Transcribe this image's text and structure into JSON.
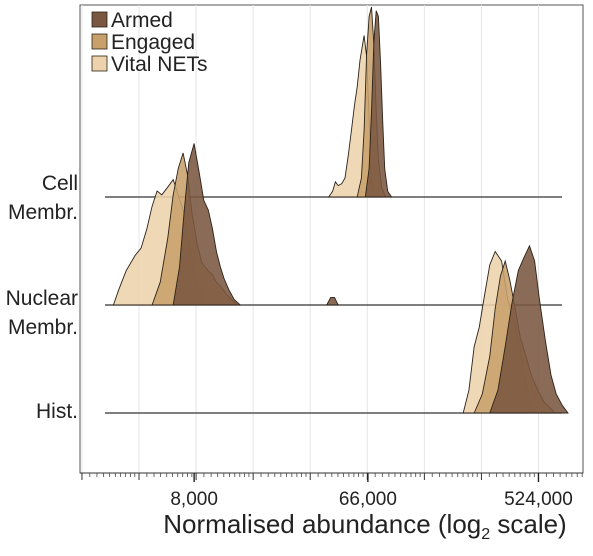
{
  "chart_data": {
    "type": "area",
    "subtype": "ridgeline-density",
    "xlabel": "Normalised abundance (log",
    "xlabel_sub": "2",
    "xlabel_suffix": " scale)",
    "x_scale": "log2",
    "xlim": [
      2000,
      900000
    ],
    "x_ticks": [
      8000,
      66000,
      524000
    ],
    "x_tick_labels": [
      "8,000",
      "66,000",
      "524,000"
    ],
    "grid": true,
    "legend": {
      "placement": "top-left"
    },
    "categories": [
      "Cell Membr.",
      "Nuclear Membr.",
      "Hist."
    ],
    "row_labels": [
      [
        "Cell",
        "Membr."
      ],
      [
        "Nuclear",
        "Membr."
      ],
      [
        "Hist."
      ]
    ],
    "series": [
      {
        "name": "Vital NETs",
        "color": "#ecd3ac",
        "density": [
          {
            "x": [
              41000,
              43000,
              44500,
              46000,
              48000,
              50000,
              52000,
              54000,
              56000,
              58000,
              60000,
              63000,
              65000,
              67000,
              69000,
              72000
            ],
            "y": [
              0.0,
              0.03,
              0.08,
              0.06,
              0.07,
              0.1,
              0.22,
              0.35,
              0.48,
              0.58,
              0.72,
              0.85,
              0.74,
              0.42,
              0.1,
              0.0
            ]
          },
          {
            "x": [
              3000,
              3200,
              3500,
              3900,
              4200,
              4500,
              4800,
              5100,
              5400,
              5800,
              6200,
              6500,
              7000,
              7500,
              8000,
              8500,
              9000
            ],
            "y": [
              0.0,
              0.08,
              0.18,
              0.26,
              0.3,
              0.4,
              0.52,
              0.6,
              0.58,
              0.62,
              0.66,
              0.6,
              0.5,
              0.35,
              0.18,
              0.08,
              0.0
            ]
          },
          {
            "x": [
              210000,
              225000,
              240000,
              255000,
              270000,
              290000,
              310000,
              335000,
              360000,
              385000,
              410000,
              440000,
              470000,
              510000
            ],
            "y": [
              0.0,
              0.12,
              0.35,
              0.45,
              0.6,
              0.78,
              0.85,
              0.8,
              0.6,
              0.5,
              0.4,
              0.2,
              0.08,
              0.0
            ]
          }
        ]
      },
      {
        "name": "Engaged",
        "color": "#c8a06c",
        "density": [
          {
            "x": [
              58000,
              61000,
              63000,
              65000,
              67000,
              69000,
              71000,
              73000,
              75000,
              78000,
              82000
            ],
            "y": [
              0.0,
              0.1,
              0.35,
              0.75,
              0.95,
              1.0,
              0.8,
              0.45,
              0.2,
              0.05,
              0.0
            ]
          },
          {
            "x": [
              4800,
              5300,
              5800,
              6200,
              6600,
              7000,
              7400,
              7800,
              8300,
              8800,
              9500,
              10000,
              10500,
              11000,
              12000,
              13500
            ],
            "y": [
              0.0,
              0.12,
              0.35,
              0.58,
              0.72,
              0.8,
              0.68,
              0.48,
              0.32,
              0.22,
              0.18,
              0.16,
              0.12,
              0.1,
              0.05,
              0.0
            ]
          },
          {
            "x": [
              240000,
              265000,
              290000,
              310000,
              330000,
              350000,
              370000,
              395000,
              420000,
              450000,
              480000,
              520000,
              560000,
              600000,
              640000
            ],
            "y": [
              0.0,
              0.1,
              0.3,
              0.55,
              0.72,
              0.8,
              0.7,
              0.55,
              0.4,
              0.3,
              0.2,
              0.12,
              0.06,
              0.03,
              0.0
            ]
          }
        ]
      },
      {
        "name": "Armed",
        "color": "#7a5740",
        "density": [
          {
            "x": [
              64000,
              67000,
              69000,
              71000,
              73000,
              75000,
              77000,
              79000,
              81000,
              84000,
              88000
            ],
            "y": [
              0.0,
              0.15,
              0.45,
              0.82,
              0.98,
              0.95,
              0.7,
              0.4,
              0.15,
              0.03,
              0.0
            ]
          },
          {
            "x": [
              6200,
              6700,
              7100,
              7500,
              8000,
              8500,
              9000,
              9500,
              10000,
              10500,
              11000,
              11500,
              12200,
              13000,
              14000
            ],
            "y": [
              0.0,
              0.2,
              0.5,
              0.75,
              0.85,
              0.7,
              0.55,
              0.5,
              0.4,
              0.28,
              0.2,
              0.14,
              0.08,
              0.03,
              0.0
            ]
          },
          {
            "x": [
              40000,
              42000,
              44000,
              46000
            ],
            "y": [
              0.0,
              0.04,
              0.04,
              0.0
            ]
          },
          {
            "x": [
              290000,
              320000,
              350000,
              380000,
              410000,
              440000,
              470000,
              500000,
              530000,
              570000,
              610000,
              650000,
              700000,
              750000
            ],
            "y": [
              0.0,
              0.12,
              0.35,
              0.58,
              0.75,
              0.82,
              0.88,
              0.8,
              0.6,
              0.38,
              0.2,
              0.1,
              0.04,
              0.0
            ]
          }
        ]
      }
    ]
  }
}
